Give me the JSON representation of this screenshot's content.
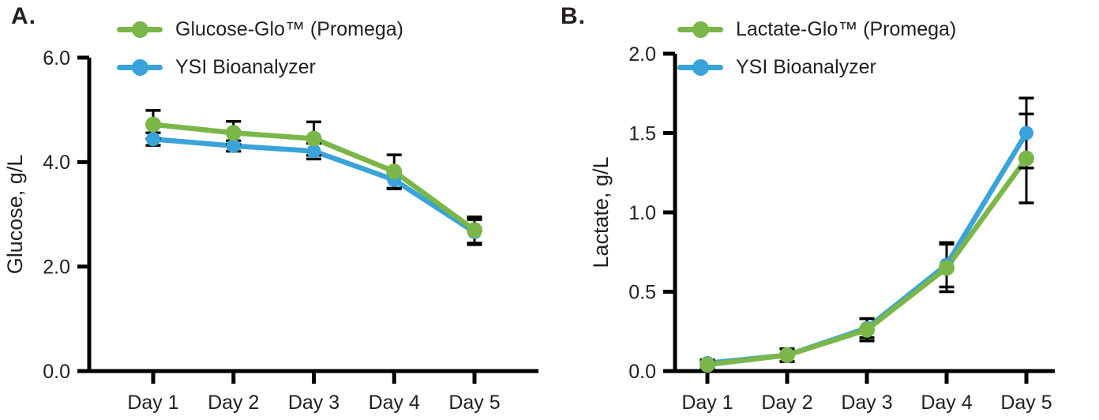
{
  "figure": {
    "background": "#ffffff",
    "text_color": "#231f20",
    "axis_color": "#000000",
    "green": "#7ab648",
    "blue": "#39a3da"
  },
  "chart_data": [
    {
      "type": "line",
      "panel_label": "A.",
      "ylabel": "Glucose, g/L",
      "xlabel": "",
      "title": "",
      "categories": [
        "Day 1",
        "Day 2",
        "Day 3",
        "Day 4",
        "Day 5"
      ],
      "ylim": [
        0,
        6
      ],
      "yticks": [
        0,
        2,
        4,
        6
      ],
      "ytick_labels": [
        "0.0",
        "2.0",
        "4.0",
        "6.0"
      ],
      "grid": false,
      "error_bars": true,
      "legend_position": "top-left-inside",
      "series": [
        {
          "name": "Glucose-Glo™ (Promega)",
          "color": "#7ab648",
          "marker": "circle",
          "marker_radius": 10,
          "values": [
            4.72,
            4.56,
            4.45,
            3.82,
            2.7
          ],
          "errors": [
            0.27,
            0.22,
            0.32,
            0.32,
            0.25
          ]
        },
        {
          "name": "YSI Bioanalyzer",
          "color": "#39a3da",
          "marker": "circle",
          "marker_radius": 9,
          "values": [
            4.44,
            4.31,
            4.21,
            3.66,
            2.66
          ],
          "errors": [
            0.12,
            0.1,
            0.15,
            0.17,
            0.24
          ]
        }
      ]
    },
    {
      "type": "line",
      "panel_label": "B.",
      "ylabel": "Lactate, g/L",
      "xlabel": "",
      "title": "",
      "categories": [
        "Day 1",
        "Day 2",
        "Day 3",
        "Day 4",
        "Day 5"
      ],
      "ylim": [
        0,
        2
      ],
      "yticks": [
        0,
        0.5,
        1,
        1.5,
        2
      ],
      "ytick_labels": [
        "0.0",
        "0.5",
        "1.0",
        "1.5",
        "2.0"
      ],
      "grid": false,
      "error_bars": true,
      "legend_position": "top-left-inside",
      "series": [
        {
          "name": "Lactate-Glo™ (Promega)",
          "color": "#7ab648",
          "marker": "circle",
          "marker_radius": 10,
          "values": [
            0.04,
            0.1,
            0.26,
            0.65,
            1.34
          ],
          "errors": [
            0.02,
            0.04,
            0.07,
            0.15,
            0.28
          ]
        },
        {
          "name": "YSI Bioanalyzer",
          "color": "#39a3da",
          "marker": "circle",
          "marker_radius": 9,
          "values": [
            0.05,
            0.1,
            0.27,
            0.67,
            1.5
          ],
          "errors": [
            0.02,
            0.04,
            0.06,
            0.14,
            0.22
          ]
        }
      ]
    }
  ]
}
